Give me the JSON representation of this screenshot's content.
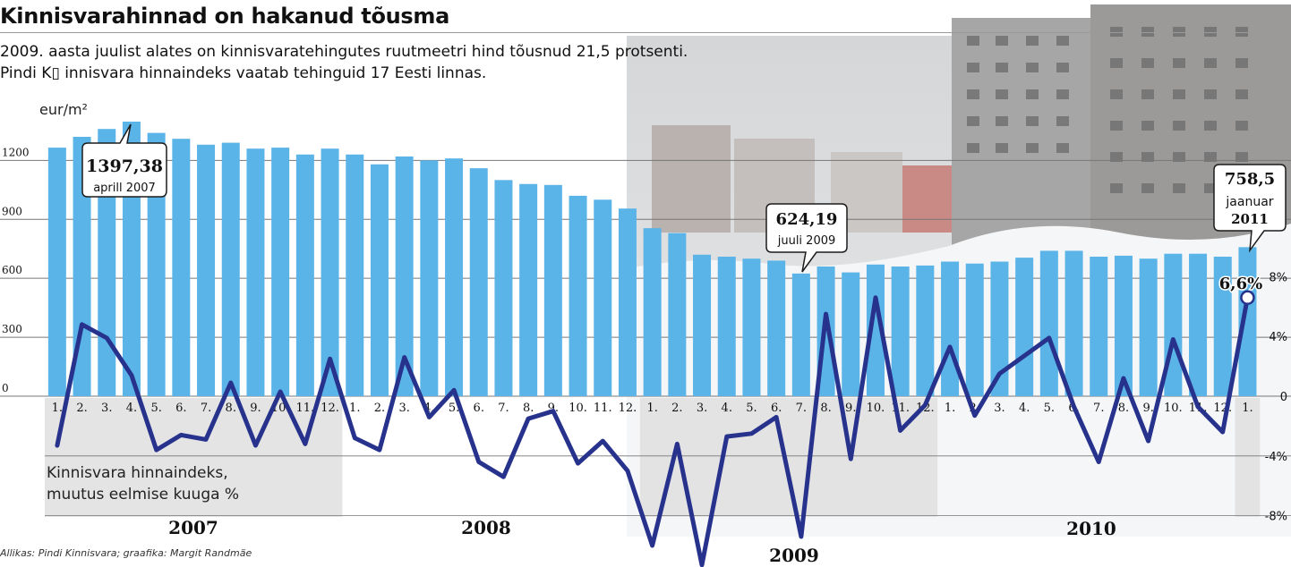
{
  "title": "Kinnisvarahinnad on hakanud tõusma",
  "subtitle_lines": [
    "2009. aasta juulist alates on kinnisvaratehingutes ruutmeetri hind tõusnud 21,5 protsenti.",
    "Pindi K▯ innisvara hinnaindeks vaatab tehinguid 17 Eesti linnas."
  ],
  "source": "Allikas: Pindi Kinnisvara; graafika: Margit Randmäe",
  "chart_data": {
    "type": "bar",
    "unit_label": "eur/m²",
    "ylim": [
      -300,
      1400
    ],
    "left_ticks": [
      "0",
      "300",
      "600",
      "900",
      "1200"
    ],
    "right_ticks": [
      "8%",
      "4%",
      "0",
      "-4%",
      "-8%"
    ],
    "years": [
      "2007",
      "2008",
      "2009",
      "2010"
    ],
    "categories": [
      "1.",
      "2.",
      "3.",
      "4.",
      "5.",
      "6.",
      "7.",
      "8.",
      "9.",
      "10.",
      "11.",
      "12.",
      "1.",
      "2.",
      "3.",
      "4.",
      "5.",
      "6.",
      "7.",
      "8.",
      "9.",
      "10.",
      "11.",
      "12.",
      "1.",
      "2.",
      "3.",
      "4.",
      "5.",
      "6.",
      "7.",
      "8.",
      "9.",
      "10.",
      "11.",
      "12.",
      "1.",
      "2.",
      "3.",
      "4.",
      "5.",
      "6.",
      "7.",
      "8.",
      "9.",
      "10.",
      "11.",
      "12.",
      "1."
    ],
    "series": [
      {
        "type": "bar",
        "values": [
          1265,
          1320,
          1360,
          1397.38,
          1340,
          1310,
          1280,
          1290,
          1260,
          1265,
          1230,
          1260,
          1230,
          1180,
          1220,
          1200,
          1210,
          1160,
          1100,
          1080,
          1075,
          1020,
          1000,
          955,
          855,
          830,
          720,
          710,
          700,
          690,
          624.19,
          660,
          630,
          670,
          660,
          665,
          685,
          675,
          685,
          705,
          740,
          740,
          710,
          715,
          700,
          725,
          725,
          710,
          758.5
        ]
      },
      {
        "type": "line",
        "name": "Kinnisvara hinnaindeks, muutus eelmise kuuga %",
        "values": [
          -3.3,
          4.8,
          3.9,
          1.4,
          -3.6,
          -2.6,
          -2.9,
          0.9,
          -3.3,
          0.3,
          -3.2,
          2.5,
          -2.8,
          -3.6,
          2.6,
          -1.4,
          0.4,
          -4.4,
          -5.4,
          -1.5,
          -1.0,
          -4.5,
          -3.0,
          -5.0,
          -10.0,
          -3.2,
          -11.3,
          -2.7,
          -2.5,
          -1.4,
          -9.4,
          5.5,
          -4.2,
          6.6,
          -2.3,
          -0.6,
          3.3,
          -1.3,
          1.5,
          2.7,
          3.9,
          -0.7,
          -4.4,
          1.2,
          -3.0,
          3.8,
          -0.7,
          -2.4,
          6.6
        ]
      }
    ],
    "annotations": [
      {
        "value": "1397,38",
        "text": "aprill 2007"
      },
      {
        "value": "624,19",
        "text": "juuli 2009"
      },
      {
        "value": "758,5",
        "text": "jaanuar 2011"
      },
      {
        "value": "6,6%",
        "text": ""
      }
    ],
    "colors": {
      "bar": "#5bb4e8",
      "line": "#27328c",
      "band": "#e1e1e1",
      "grid": "#777777"
    }
  }
}
